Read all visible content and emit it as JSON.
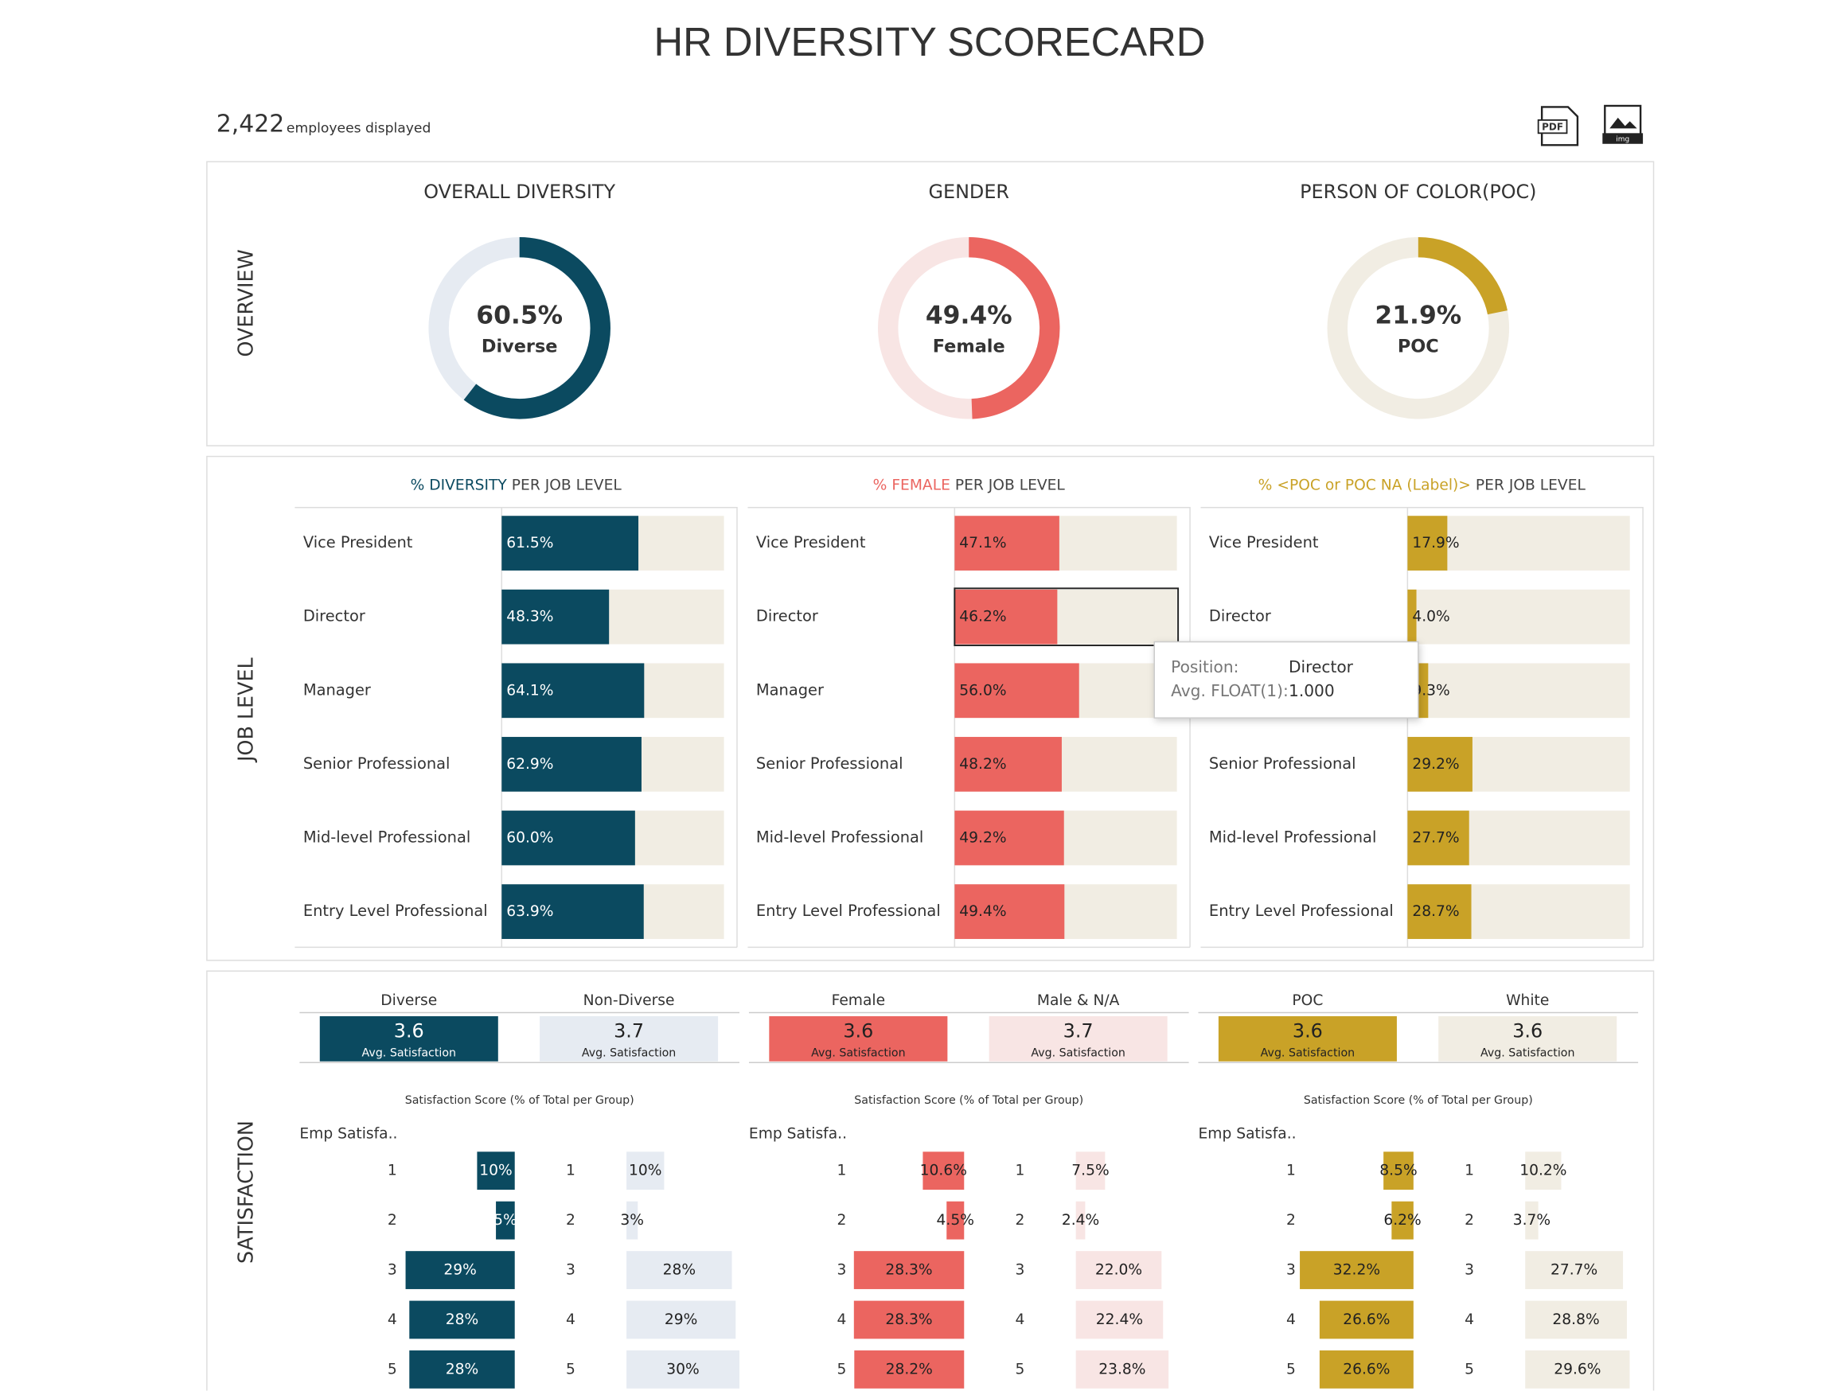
{
  "title": "HR DIVERSITY SCORECARD",
  "employees": "2,422",
  "employees_label": "employees displayed",
  "icons": [
    "PDF",
    "img"
  ],
  "section_labels": [
    "OVERVIEW",
    "JOB LEVEL",
    "SATISFACTION"
  ],
  "tooltip": {
    "rows": [
      [
        "Position:",
        "Director"
      ],
      [
        "Avg. FLOAT(1):",
        "1.000"
      ]
    ]
  },
  "chart_data": [
    {
      "type": "donut",
      "title": "OVERALL DIVERSITY",
      "values": [
        60.5
      ],
      "value_labels": [
        "60.5%"
      ],
      "label": "Diverse",
      "ylim": [
        0,
        100
      ],
      "colors": [
        "#0b4a60",
        "#e6ebf2"
      ]
    },
    {
      "type": "donut",
      "title": "GENDER",
      "values": [
        49.4
      ],
      "value_labels": [
        "49.4%"
      ],
      "label": "Female",
      "ylim": [
        0,
        100
      ],
      "colors": [
        "#eb6560",
        "#f8e5e4"
      ]
    },
    {
      "type": "donut",
      "title": "PERSON OF COLOR(POC)",
      "values": [
        21.9
      ],
      "value_labels": [
        "21.9%"
      ],
      "label": "POC",
      "ylim": [
        0,
        100
      ],
      "colors": [
        "#c9a227",
        "#f1ede3"
      ]
    },
    {
      "type": "barh",
      "title": [
        "% DIVERSITY",
        "PER JOB LEVEL"
      ],
      "title_color": "#0b4a60",
      "color": "#0b4a60",
      "track_color": "#f1ede3",
      "xlim": [
        0,
        100
      ],
      "categories": [
        "Vice President",
        "Director",
        "Manager",
        "Senior Professional",
        "Mid-level Professional",
        "Entry Level Professional"
      ],
      "values": [
        61.5,
        48.3,
        64.1,
        62.9,
        60.0,
        63.9
      ],
      "value_labels": [
        "61.5%",
        "48.3%",
        "64.1%",
        "62.9%",
        "60.0%",
        "63.9%"
      ]
    },
    {
      "type": "barh",
      "title": [
        "% FEMALE",
        "PER JOB LEVEL"
      ],
      "title_color": "#eb6560",
      "color": "#eb6560",
      "track_color": "#f1ede3",
      "xlim": [
        0,
        100
      ],
      "categories": [
        "Vice President",
        "Director",
        "Manager",
        "Senior Professional",
        "Mid-level Professional",
        "Entry Level Professional"
      ],
      "values": [
        47.1,
        46.2,
        56.0,
        48.2,
        49.2,
        49.4
      ],
      "value_labels": [
        "47.1%",
        "46.2%",
        "56.0%",
        "48.2%",
        "49.2%",
        "49.4%"
      ]
    },
    {
      "type": "barh",
      "title": [
        "% <POC or POC NA (Label)>",
        "PER JOB LEVEL"
      ],
      "title_color": "#c9a227",
      "color": "#c9a227",
      "track_color": "#f1ede3",
      "xlim": [
        0,
        100
      ],
      "categories": [
        "Vice President",
        "Director",
        "Manager",
        "Senior Professional",
        "Mid-level Professional",
        "Entry Level Professional"
      ],
      "values": [
        17.9,
        4.0,
        9.3,
        29.2,
        27.7,
        28.7
      ],
      "value_labels": [
        "17.9%",
        "4.0%",
        "9.3%",
        "29.2%",
        "27.7%",
        "28.7%"
      ]
    },
    {
      "type": "bar",
      "subtitle": "Satisfaction Score (% of Total per Group)",
      "axis_title": "Emp Satisfa..",
      "xlim": [
        0,
        30
      ],
      "categories": [
        "1",
        "2",
        "3",
        "4",
        "5"
      ],
      "series": [
        {
          "name": "Diverse",
          "avg": 3.6,
          "avg_label": "Avg. Satisfaction",
          "color": "#0b4a60",
          "values": [
            10,
            5,
            29,
            28,
            28
          ],
          "value_labels": [
            "10%",
            "5%",
            "29%",
            "28%",
            "28%"
          ]
        },
        {
          "name": "Non-Diverse",
          "avg": 3.7,
          "avg_label": "Avg. Satisfaction",
          "color": "#e6ebf2",
          "values": [
            10,
            3,
            28,
            29,
            30
          ],
          "value_labels": [
            "10%",
            "3%",
            "28%",
            "29%",
            "30%"
          ]
        }
      ]
    },
    {
      "type": "bar",
      "subtitle": "Satisfaction Score (% of Total per Group)",
      "axis_title": "Emp Satisfa..",
      "xlim": [
        0,
        29
      ],
      "categories": [
        "1",
        "2",
        "3",
        "4",
        "5"
      ],
      "series": [
        {
          "name": "Female",
          "avg": 3.6,
          "avg_label": "Avg. Satisfaction",
          "color": "#eb6560",
          "values": [
            10.6,
            4.5,
            28.3,
            28.3,
            28.2
          ],
          "value_labels": [
            "10.6%",
            "4.5%",
            "28.3%",
            "28.3%",
            "28.2%"
          ]
        },
        {
          "name": "Male & N/A",
          "avg": 3.7,
          "avg_label": "Avg. Satisfaction",
          "color": "#f8e5e4",
          "values": [
            7.5,
            2.4,
            22.0,
            22.4,
            23.8
          ],
          "value_labels": [
            "7.5%",
            "2.4%",
            "22.0%",
            "22.4%",
            "23.8%"
          ]
        }
      ]
    },
    {
      "type": "bar",
      "subtitle": "Satisfaction Score (% of Total per Group)",
      "axis_title": "Emp Satisfa..",
      "xlim": [
        0,
        32
      ],
      "categories": [
        "1",
        "2",
        "3",
        "4",
        "5"
      ],
      "series": [
        {
          "name": "POC",
          "avg": 3.6,
          "avg_label": "Avg. Satisfaction",
          "color": "#c9a227",
          "values": [
            8.5,
            6.2,
            32.2,
            26.6,
            26.6
          ],
          "value_labels": [
            "8.5%",
            "6.2%",
            "32.2%",
            "26.6%",
            "26.6%"
          ]
        },
        {
          "name": "White",
          "avg": 3.6,
          "avg_label": "Avg. Satisfaction",
          "color": "#f1ede3",
          "values": [
            10.2,
            3.7,
            27.7,
            28.8,
            29.6
          ],
          "value_labels": [
            "10.2%",
            "3.7%",
            "27.7%",
            "28.8%",
            "29.6%"
          ]
        }
      ]
    }
  ]
}
